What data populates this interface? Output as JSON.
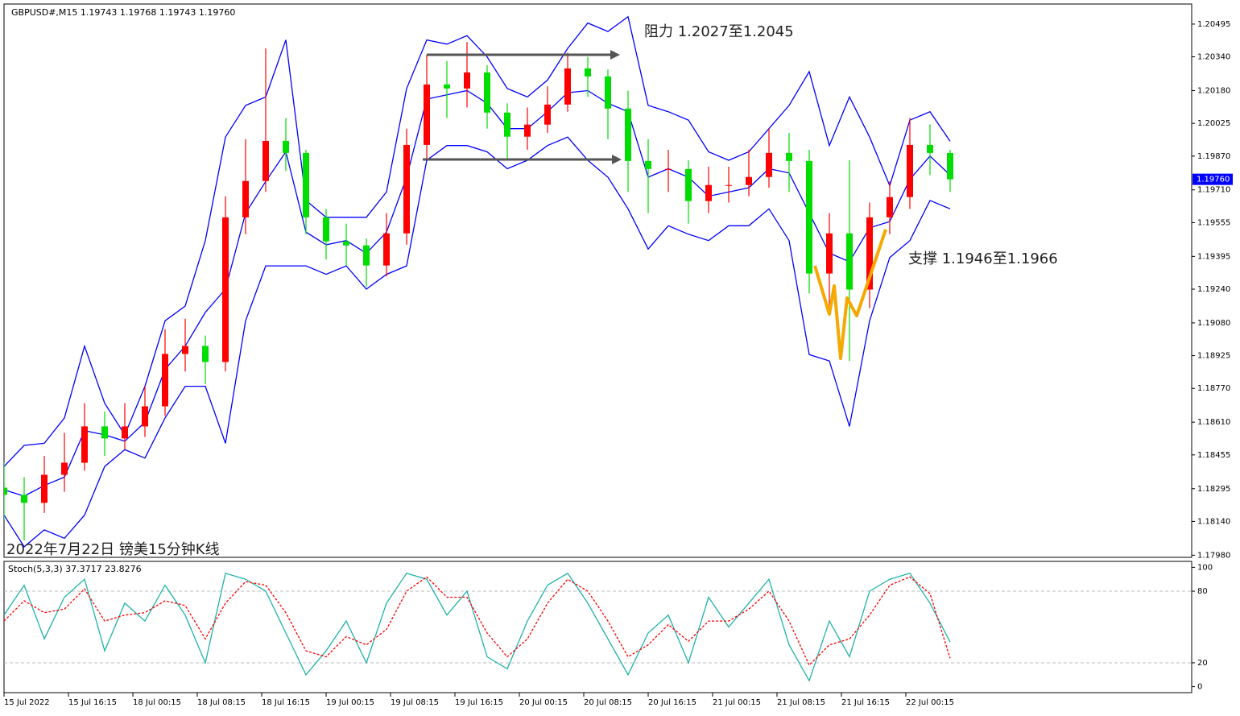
{
  "chart_data": [
    {
      "type": "candlestick",
      "title": "GBPUSD#,M15  1.19743 1.19768 1.19743 1.19760",
      "annotations": [
        "阻力 1.2027至1.2045",
        "支撑 1.1946至1.1966",
        "2022年7月22日 镑美15分钟K线"
      ],
      "x": [
        0,
        10,
        20,
        30,
        40,
        50,
        60,
        70,
        80,
        90,
        100,
        110,
        120,
        130,
        140,
        150,
        160,
        170,
        180,
        190,
        200,
        210,
        220,
        230,
        240,
        250,
        260,
        270,
        280,
        290,
        300,
        310,
        320,
        330,
        340,
        350,
        360,
        370,
        380,
        390,
        400,
        410,
        420,
        430,
        440,
        450,
        460,
        470
      ],
      "open": [
        1.183,
        1.18266,
        1.18228,
        1.18361,
        1.18418,
        1.1859,
        1.18533,
        1.1859,
        1.18685,
        1.18933,
        1.18971,
        1.18895,
        1.1958,
        1.19752,
        1.19942,
        1.19885,
        1.1958,
        1.19466,
        1.19447,
        1.19352,
        1.19504,
        1.19923,
        1.20209,
        1.2019,
        1.20266,
        1.20076,
        1.19962,
        1.20019,
        1.20114,
        1.20285,
        1.20247,
        1.20095,
        1.19847,
        1.19809,
        1.19809,
        1.19657,
        1.19733,
        1.19733,
        1.19771,
        1.19885,
        1.19847,
        1.19314,
        1.19504,
        1.19238,
        1.1958,
        1.19676,
        1.19923,
        1.19885
      ],
      "high": [
        1.1842,
        1.1835,
        1.1845,
        1.1856,
        1.187,
        1.1866,
        1.187,
        1.1878,
        1.1905,
        1.191,
        1.1902,
        1.1968,
        1.1995,
        1.2038,
        1.2005,
        1.199,
        1.1962,
        1.1955,
        1.1948,
        1.196,
        1.2,
        1.2035,
        1.2032,
        1.2041,
        1.203,
        1.2012,
        1.201,
        1.202,
        1.2036,
        1.2034,
        1.2028,
        1.2018,
        1.1995,
        1.199,
        1.1985,
        1.1982,
        1.1982,
        1.199,
        1.2,
        1.1998,
        1.199,
        1.196,
        1.1985,
        1.1965,
        1.1975,
        1.2005,
        1.2002,
        1.199
      ],
      "low": [
        1.1815,
        1.1805,
        1.1818,
        1.1828,
        1.1838,
        1.1845,
        1.1848,
        1.1854,
        1.1864,
        1.1885,
        1.1879,
        1.1885,
        1.195,
        1.197,
        1.198,
        1.195,
        1.1938,
        1.1935,
        1.1925,
        1.193,
        1.1945,
        1.1985,
        1.2005,
        1.201,
        1.2,
        1.1985,
        1.199,
        1.1998,
        1.2008,
        1.2015,
        1.1995,
        1.197,
        1.196,
        1.197,
        1.1955,
        1.196,
        1.1965,
        1.1968,
        1.1972,
        1.197,
        1.1922,
        1.1915,
        1.189,
        1.1915,
        1.195,
        1.1962,
        1.1978,
        1.197
      ],
      "close": [
        1.18266,
        1.18228,
        1.18361,
        1.18418,
        1.1859,
        1.18533,
        1.1859,
        1.18685,
        1.18933,
        1.18971,
        1.18895,
        1.1958,
        1.19752,
        1.19942,
        1.19885,
        1.1958,
        1.19466,
        1.19447,
        1.19352,
        1.19504,
        1.19923,
        1.20209,
        1.2019,
        1.20266,
        1.20076,
        1.19962,
        1.20019,
        1.20114,
        1.20285,
        1.20247,
        1.20095,
        1.19847,
        1.19809,
        1.19809,
        1.19657,
        1.19733,
        1.19733,
        1.19771,
        1.19885,
        1.19847,
        1.19314,
        1.19504,
        1.19238,
        1.1958,
        1.19676,
        1.19923,
        1.19885,
        1.1976
      ],
      "up_color": "#ff0000",
      "down_color": "#00dd00",
      "bands": {
        "color": "#0000ff",
        "upper": [
          1.184,
          1.185,
          1.1851,
          1.1863,
          1.1897,
          1.187,
          1.1855,
          1.1878,
          1.1909,
          1.1916,
          1.1947,
          1.1996,
          1.2011,
          1.2015,
          1.2042,
          1.1966,
          1.1958,
          1.1958,
          1.1958,
          1.197,
          1.2019,
          1.2042,
          1.204,
          1.2044,
          1.2034,
          1.2019,
          1.2015,
          1.2023,
          1.2038,
          1.205,
          1.2046,
          1.2053,
          1.2011,
          1.2008,
          1.2004,
          1.1989,
          1.1985,
          1.1989,
          1.2,
          1.2011,
          1.2027,
          1.1992,
          1.2015,
          1.1996,
          1.1973,
          1.2004,
          1.2008,
          1.1994
        ],
        "middle": [
          1.1829,
          1.1826,
          1.1831,
          1.1835,
          1.1857,
          1.1855,
          1.1852,
          1.1861,
          1.1886,
          1.1897,
          1.1913,
          1.1924,
          1.196,
          1.1975,
          1.1989,
          1.1951,
          1.1945,
          1.1947,
          1.1941,
          1.1951,
          1.1977,
          1.2014,
          1.2016,
          1.2018,
          1.2012,
          1.2,
          1.2,
          1.2008,
          1.2017,
          1.2018,
          1.2012,
          1.2008,
          1.1977,
          1.1981,
          1.1977,
          1.1968,
          1.197,
          1.1972,
          1.1981,
          1.1979,
          1.196,
          1.1941,
          1.1937,
          1.1953,
          1.1956,
          1.1976,
          1.1987,
          1.1978
        ],
        "lower": [
          1.1817,
          1.1802,
          1.181,
          1.1806,
          1.1817,
          1.184,
          1.1848,
          1.1844,
          1.1863,
          1.1878,
          1.1878,
          1.1851,
          1.1909,
          1.1935,
          1.1935,
          1.1935,
          1.1931,
          1.1935,
          1.1924,
          1.1931,
          1.1935,
          1.1985,
          1.1992,
          1.1992,
          1.1989,
          1.1981,
          1.1985,
          1.1992,
          1.1996,
          1.1985,
          1.1977,
          1.1962,
          1.1943,
          1.1954,
          1.195,
          1.1947,
          1.1954,
          1.1954,
          1.1962,
          1.1947,
          1.1893,
          1.189,
          1.1859,
          1.1909,
          1.1939,
          1.1947,
          1.1966,
          1.1962
        ]
      },
      "xlim": [
        0,
        590
      ],
      "ylim": [
        1.1797,
        1.2059
      ],
      "yticks": [
        1.20495,
        {
          "value": 1.2034,
          "label": "1.20340"
        },
        {
          "value": 1.2018,
          "label": "1.20180"
        },
        1.20025,
        {
          "value": 1.1987,
          "label": "1.19870"
        },
        {
          "value": 1.1971,
          "label": "1.19710"
        },
        1.19555,
        1.19395,
        {
          "value": 1.1924,
          "label": "1.19240"
        },
        {
          "value": 1.1908,
          "label": "1.19080"
        },
        1.18925,
        {
          "value": 1.1877,
          "label": "1.18770"
        },
        {
          "value": 1.1861,
          "label": "1.18610"
        },
        1.18455,
        1.18295,
        {
          "value": 1.1814,
          "label": "1.18140"
        },
        {
          "value": 1.1798,
          "label": "1.17980"
        }
      ],
      "last_price": {
        "value": 1.1976,
        "label": "1.19760"
      }
    },
    {
      "type": "line",
      "title": "Stoch(5,3,3) 37.3717 23.8276",
      "x": [
        0,
        10,
        20,
        30,
        40,
        50,
        60,
        70,
        80,
        90,
        100,
        110,
        120,
        130,
        140,
        150,
        160,
        170,
        180,
        190,
        200,
        210,
        220,
        230,
        240,
        250,
        260,
        270,
        280,
        290,
        300,
        310,
        320,
        330,
        340,
        350,
        360,
        370,
        380,
        390,
        400,
        410,
        420,
        430,
        440,
        450,
        460,
        470
      ],
      "series": [
        {
          "color": "#20b2aa",
          "values": [
            60,
            85,
            40,
            75,
            90,
            30,
            70,
            55,
            85,
            60,
            20,
            95,
            90,
            80,
            45,
            10,
            30,
            55,
            20,
            70,
            95,
            90,
            60,
            80,
            25,
            15,
            55,
            85,
            95,
            70,
            40,
            10,
            45,
            60,
            20,
            75,
            50,
            70,
            90,
            35,
            5,
            55,
            25,
            80,
            90,
            95,
            70,
            37.3717
          ]
        },
        {
          "color": "#ff0000",
          "dashed": true,
          "values": [
            55,
            72,
            62,
            65,
            82,
            55,
            60,
            62,
            72,
            68,
            40,
            70,
            88,
            85,
            62,
            30,
            25,
            42,
            35,
            48,
            80,
            92,
            75,
            75,
            45,
            25,
            40,
            70,
            90,
            80,
            55,
            25,
            35,
            52,
            38,
            55,
            55,
            65,
            80,
            55,
            18,
            35,
            40,
            60,
            85,
            92,
            78,
            23.8276
          ]
        }
      ],
      "xlim": [
        0,
        590
      ],
      "ylim": [
        -5,
        105
      ],
      "yticks": [
        0,
        20,
        80,
        100
      ],
      "levels": [
        20,
        80
      ],
      "xticks": [
        {
          "value": 0,
          "label": "15 Jul 2022"
        },
        {
          "value": 32,
          "label": "15 Jul 16:15"
        },
        {
          "value": 64,
          "label": "18 Jul 00:15"
        },
        {
          "value": 96,
          "label": "18 Jul 08:15"
        },
        {
          "value": 128,
          "label": "18 Jul 16:15"
        },
        {
          "value": 160,
          "label": "19 Jul 00:15"
        },
        {
          "value": 192,
          "label": "19 Jul 08:15"
        },
        {
          "value": 224,
          "label": "19 Jul 16:15"
        },
        {
          "value": 256,
          "label": "20 Jul 00:15"
        },
        {
          "value": 288,
          "label": "20 Jul 08:15"
        },
        {
          "value": 320,
          "label": "20 Jul 16:15"
        },
        {
          "value": 352,
          "label": "21 Jul 00:15"
        },
        {
          "value": 384,
          "label": "21 Jul 08:15"
        },
        {
          "value": 416,
          "label": "21 Jul 16:15"
        },
        {
          "value": 448,
          "label": "22 Jul 00:15"
        }
      ]
    }
  ]
}
